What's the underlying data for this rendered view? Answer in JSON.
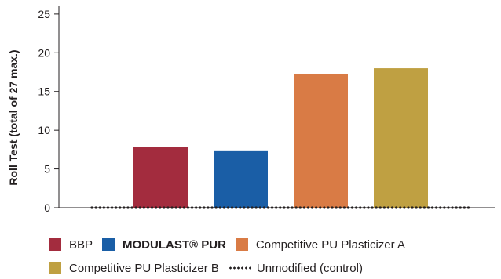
{
  "chart_data": {
    "type": "bar",
    "ylabel": "Roll Test (total of 27 max.)",
    "ylim": [
      0,
      26
    ],
    "yticks": [
      0,
      5,
      10,
      15,
      20,
      25
    ],
    "grid": false,
    "categories": [
      "BBP",
      "MODULAST® PUR",
      "Competitive PU Plasticizer A",
      "Competitive PU Plasticizer B"
    ],
    "values": [
      7.8,
      7.3,
      17.3,
      18.0
    ],
    "colors": [
      "#a32c3e",
      "#1a5ea6",
      "#d97b45",
      "#bfa042"
    ],
    "control": {
      "label": "Unmodified (control)",
      "value": 0,
      "style": "dotted"
    },
    "legend_position": "bottom"
  },
  "legend": {
    "row1": [
      {
        "label": "BBP",
        "color": "#a32c3e"
      },
      {
        "label": "MODULAST® PUR",
        "color": "#1a5ea6"
      },
      {
        "label": "Competitive PU Plasticizer A",
        "color": "#d97b45"
      }
    ],
    "row2": [
      {
        "label": "Competitive PU Plasticizer B",
        "color": "#bfa042"
      }
    ],
    "control_label": "Unmodified (control)"
  }
}
